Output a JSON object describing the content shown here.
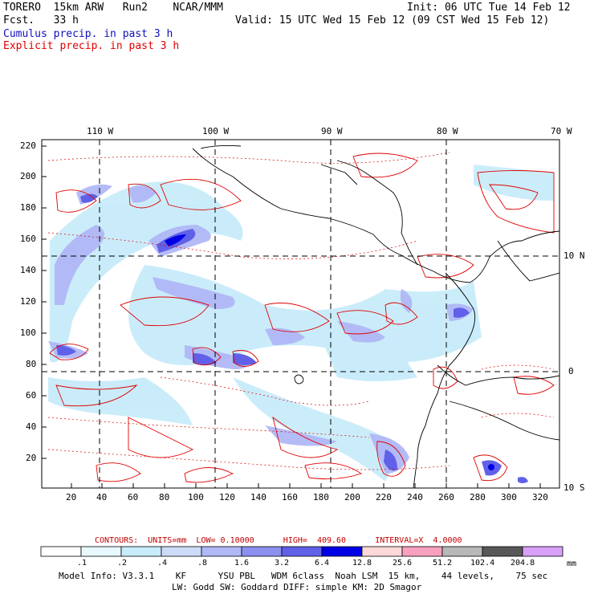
{
  "header": {
    "model_line": "TORERO  15km ARW   Run2    NCAR/MMM",
    "fcst_line": "Fcst.   33 h",
    "init_line": "Init: 06 UTC Tue 14 Feb 12",
    "valid_line": "Valid: 15 UTC Wed 15 Feb 12 (09 CST Wed 15 Feb 12)",
    "cumulus_legend": "Cumulus precip. in past 3 h",
    "explicit_legend": "Explicit precip. in past 3 h"
  },
  "map": {
    "top_lon_labels": [
      "110 W",
      "100 W",
      "90 W",
      "80 W",
      "70 W"
    ],
    "right_lat_labels": [
      "10 N",
      "0",
      "10 S"
    ],
    "y_ticks": [
      "220",
      "200",
      "180",
      "160",
      "140",
      "120",
      "100",
      "80",
      "60",
      "40",
      "20"
    ],
    "x_ticks": [
      "20",
      "40",
      "60",
      "80",
      "100",
      "120",
      "140",
      "160",
      "180",
      "200",
      "220",
      "240",
      "260",
      "280",
      "300",
      "320"
    ]
  },
  "contours_line": "CONTOURS:  UNITS=mm  LOW= 0.10000      HIGH=  409.60      INTERVAL=X  4.0000",
  "colorbar": {
    "labels": [
      ".1",
      ".2",
      ".4",
      ".8",
      "1.6",
      "3.2",
      "6.4",
      "12.8",
      "25.6",
      "51.2",
      "102.4",
      "204.8"
    ],
    "unit": "mm",
    "colors": [
      "#ffffff",
      "#e8f8ff",
      "#c8ecfa",
      "#ccdcf8",
      "#b0b8f6",
      "#8c90ee",
      "#6060e8",
      "#0000e6",
      "#fcd8d8",
      "#f8a0c0",
      "#b8b8b8",
      "#585858",
      "#d8a0f8"
    ]
  },
  "footer": {
    "line1": "Model Info: V3.3.1    KF      YSU PBL   WDM 6class  Noah LSM  15 km,    44 levels,    75 sec",
    "line2": "LW: Godd SW: Goddard DIFF: simple KM: 2D Smagor"
  }
}
